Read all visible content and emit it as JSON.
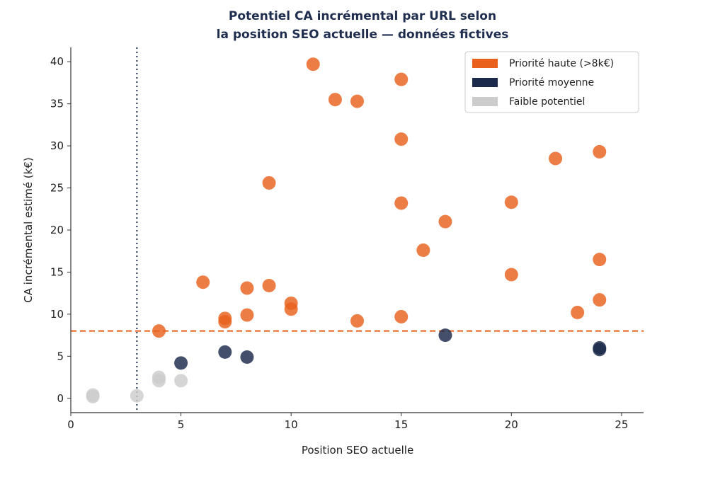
{
  "chart_data": {
    "type": "scatter",
    "title": [
      "Potentiel CA incrémental par URL selon",
      "la position SEO actuelle — données fictives"
    ],
    "xlabel": "Position SEO actuelle",
    "ylabel": "CA incrémental estimé (k€)",
    "xlim": [
      0,
      26
    ],
    "ylim": [
      -1.7,
      41.7
    ],
    "xticks": [
      0,
      5,
      10,
      15,
      20,
      25
    ],
    "yticks": [
      0,
      5,
      10,
      15,
      20,
      25,
      30,
      35,
      40
    ],
    "grid": false,
    "legend_position": "top-right",
    "threshold_y": 8,
    "threshold_color": "#e8601c",
    "reference_x": 3,
    "reference_color": "#1f2d4f",
    "series": [
      {
        "name": "Priorité haute (>8k€)",
        "color": "#e8601c",
        "points": [
          [
            4,
            8.0
          ],
          [
            6,
            13.8
          ],
          [
            7,
            9.5
          ],
          [
            7,
            9.1
          ],
          [
            8,
            13.1
          ],
          [
            8,
            9.9
          ],
          [
            9,
            13.4
          ],
          [
            9,
            25.6
          ],
          [
            10,
            11.3
          ],
          [
            10,
            10.6
          ],
          [
            11,
            39.7
          ],
          [
            12,
            35.5
          ],
          [
            13,
            35.3
          ],
          [
            13,
            9.2
          ],
          [
            15,
            37.9
          ],
          [
            15,
            30.8
          ],
          [
            15,
            23.2
          ],
          [
            15,
            9.7
          ],
          [
            16,
            17.6
          ],
          [
            17,
            21.0
          ],
          [
            20,
            23.3
          ],
          [
            20,
            14.7
          ],
          [
            22,
            28.5
          ],
          [
            23,
            10.2
          ],
          [
            24,
            29.3
          ],
          [
            24,
            16.5
          ],
          [
            24,
            11.7
          ]
        ]
      },
      {
        "name": "Priorité moyenne",
        "color": "#1b2a4a",
        "points": [
          [
            5,
            4.2
          ],
          [
            7,
            5.5
          ],
          [
            8,
            4.9
          ],
          [
            17,
            7.5
          ],
          [
            24,
            6.0
          ],
          [
            24,
            5.8
          ]
        ]
      },
      {
        "name": "Faible potentiel",
        "color": "#cccccc",
        "points": [
          [
            1,
            0.4
          ],
          [
            1,
            0.2
          ],
          [
            3,
            0.3
          ],
          [
            4,
            2.5
          ],
          [
            4,
            2.1
          ],
          [
            5,
            2.1
          ]
        ]
      }
    ]
  }
}
